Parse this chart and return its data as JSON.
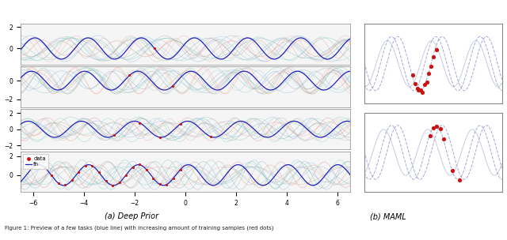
{
  "fig_width": 6.4,
  "fig_height": 3.04,
  "dpi": 100,
  "bg_color": "#ffffff",
  "left_title": "(a) Deep Prior",
  "right_title": "(b) MAML",
  "caption": "Figure 1: Preview of a few tasks (blue line) with increasing amount of training samples (red dots)",
  "blue_color": "#2222bb",
  "red_color": "#cc1111",
  "panel_bg": "#f5f5f5",
  "main_freq": 3.0,
  "main_amp": 1.0,
  "sample_warm": [
    "#e8a090",
    "#d89080",
    "#f0b0a0",
    "#e09080",
    "#d8a898"
  ],
  "sample_cool": [
    "#90b8d8",
    "#a0c8e0",
    "#80a8c8",
    "#90b0d0",
    "#a0bcd0"
  ],
  "sample_teal": [
    "#80c8c0",
    "#90d0c8",
    "#70b8b0"
  ],
  "maml_dashed_color": "#8888cc",
  "maml_solid_color": "#99aacc"
}
